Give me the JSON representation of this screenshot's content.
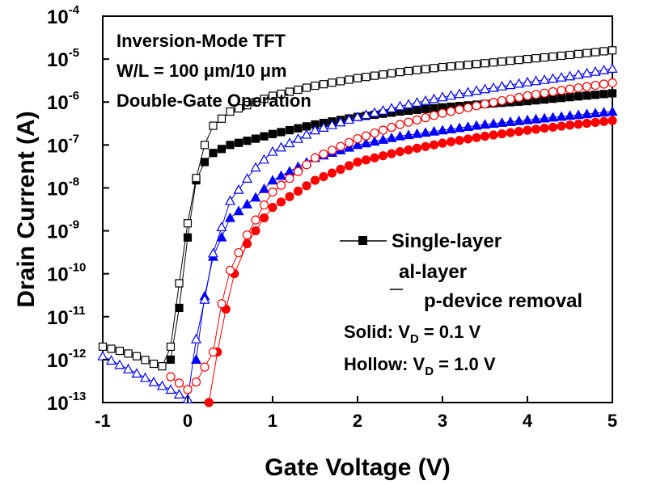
{
  "chart_data": {
    "type": "scatter",
    "title": "",
    "xlabel": "Gate Voltage (V)",
    "ylabel": "Drain Current (A)",
    "xlim": [
      -1,
      5
    ],
    "ylim": [
      1e-13,
      0.0001
    ],
    "yscale": "log",
    "grid": false,
    "x_ticks": [
      "-1",
      "0",
      "1",
      "2",
      "3",
      "4",
      "5"
    ],
    "y_ticks": [
      {
        "base": "10",
        "exp": "-4"
      },
      {
        "base": "10",
        "exp": "-5"
      },
      {
        "base": "10",
        "exp": "-6"
      },
      {
        "base": "10",
        "exp": "-7"
      },
      {
        "base": "10",
        "exp": "-8"
      },
      {
        "base": "10",
        "exp": "-9"
      },
      {
        "base": "10",
        "exp": "-10"
      },
      {
        "base": "10",
        "exp": "-11"
      },
      {
        "base": "10",
        "exp": "-12"
      },
      {
        "base": "10",
        "exp": "-13"
      }
    ],
    "annotations": [
      "Inversion-Mode TFT",
      "W/L = 100 μm/10 μm",
      "Double-Gate Operation"
    ],
    "legend_position": "lower-right",
    "legend": [
      {
        "label": "Single-layer",
        "marker": "square",
        "color": "#000000"
      },
      {
        "label": "al-layer",
        "marker": "triangle",
        "color": "#0000ff"
      },
      {
        "label": "p-device removal",
        "marker": "circle",
        "color": "#ff0000"
      }
    ],
    "notes": [
      {
        "prefix": "Solid: V",
        "sub": "D",
        "suffix": " = 0.1 V"
      },
      {
        "prefix": "Hollow: V",
        "sub": "D",
        "suffix": " = 1.0 V"
      }
    ],
    "series": [
      {
        "marker": "square",
        "fill": "solid",
        "color": "#000000",
        "points": [
          [
            -0.2,
            1e-12
          ],
          [
            -0.1,
            1.6e-11
          ],
          [
            0,
            7e-10
          ],
          [
            0.1,
            1.5e-08
          ],
          [
            0.2,
            4e-08
          ],
          [
            0.3,
            6.5e-08
          ],
          [
            0.5,
            1e-07
          ],
          [
            0.8,
            1.4e-07
          ],
          [
            1,
            1.8e-07
          ],
          [
            1.5,
            3e-07
          ],
          [
            2,
            4.5e-07
          ],
          [
            2.5,
            6e-07
          ],
          [
            3,
            7.5e-07
          ],
          [
            3.5,
            9e-07
          ],
          [
            4,
            1.05e-06
          ],
          [
            4.5,
            1.3e-06
          ],
          [
            5,
            1.6e-06
          ]
        ]
      },
      {
        "marker": "square",
        "fill": "hollow",
        "color": "#000000",
        "points": [
          [
            -1,
            2e-12
          ],
          [
            -0.8,
            1.6e-12
          ],
          [
            -0.6,
            1.2e-12
          ],
          [
            -0.4,
            8e-13
          ],
          [
            -0.3,
            7e-13
          ],
          [
            -0.2,
            2e-12
          ],
          [
            -0.1,
            6e-11
          ],
          [
            0,
            1.5e-09
          ],
          [
            0.1,
            1.7e-08
          ],
          [
            0.2,
            1e-07
          ],
          [
            0.3,
            2.8e-07
          ],
          [
            0.5,
            6e-07
          ],
          [
            0.8,
            1e-06
          ],
          [
            1,
            1.4e-06
          ],
          [
            1.5,
            2.4e-06
          ],
          [
            2,
            3.6e-06
          ],
          [
            2.5,
            5e-06
          ],
          [
            3,
            6.5e-06
          ],
          [
            3.5,
            8e-06
          ],
          [
            4,
            1e-05
          ],
          [
            4.5,
            1.25e-05
          ],
          [
            5,
            1.6e-05
          ]
        ]
      },
      {
        "marker": "triangle",
        "fill": "solid",
        "color": "#0000ff",
        "points": [
          [
            0.1,
            1e-12
          ],
          [
            0.2,
            3e-11
          ],
          [
            0.3,
            2.5e-10
          ],
          [
            0.5,
            2e-09
          ],
          [
            0.8,
            6e-09
          ],
          [
            1,
            1.5e-08
          ],
          [
            1.5,
            5e-08
          ],
          [
            2,
            1e-07
          ],
          [
            2.5,
            1.6e-07
          ],
          [
            3,
            2.2e-07
          ],
          [
            3.5,
            3e-07
          ],
          [
            4,
            3.8e-07
          ],
          [
            4.5,
            4.8e-07
          ],
          [
            5,
            6e-07
          ]
        ]
      },
      {
        "marker": "triangle",
        "fill": "hollow",
        "color": "#0000ff",
        "points": [
          [
            -1,
            1.2e-12
          ],
          [
            -0.7,
            6e-13
          ],
          [
            -0.4,
            3e-13
          ],
          [
            -0.2,
            2e-13
          ],
          [
            0,
            1.2e-13
          ],
          [
            0.1,
            3e-12
          ],
          [
            0.2,
            2.5e-11
          ],
          [
            0.3,
            3e-10
          ],
          [
            0.5,
            5e-09
          ],
          [
            0.8,
            3e-08
          ],
          [
            1,
            7e-08
          ],
          [
            1.5,
            2.2e-07
          ],
          [
            2,
            4.5e-07
          ],
          [
            2.5,
            8e-07
          ],
          [
            3,
            1.3e-06
          ],
          [
            3.5,
            2e-06
          ],
          [
            4,
            2.9e-06
          ],
          [
            4.5,
            4e-06
          ],
          [
            5,
            6e-06
          ]
        ]
      },
      {
        "marker": "circle",
        "fill": "solid",
        "color": "#ff0000",
        "points": [
          [
            0.25,
            1e-13
          ],
          [
            0.35,
            1.5e-12
          ],
          [
            0.45,
            1.5e-11
          ],
          [
            0.55,
            1e-10
          ],
          [
            0.7,
            5e-10
          ],
          [
            0.9,
            2e-09
          ],
          [
            1,
            3.5e-09
          ],
          [
            1.5,
            1.5e-08
          ],
          [
            2,
            4e-08
          ],
          [
            2.5,
            7e-08
          ],
          [
            3,
            1.1e-07
          ],
          [
            3.5,
            1.6e-07
          ],
          [
            4,
            2.2e-07
          ],
          [
            4.5,
            2.9e-07
          ],
          [
            5,
            3.7e-07
          ]
        ]
      },
      {
        "marker": "circle",
        "fill": "hollow",
        "color": "#ff0000",
        "points": [
          [
            -0.2,
            4e-13
          ],
          [
            0,
            2e-13
          ],
          [
            0.1,
            3e-13
          ],
          [
            0.3,
            1.5e-12
          ],
          [
            0.4,
            2e-11
          ],
          [
            0.5,
            1.2e-10
          ],
          [
            0.7,
            8e-10
          ],
          [
            0.9,
            4e-09
          ],
          [
            1,
            8e-09
          ],
          [
            1.5,
            5e-08
          ],
          [
            2,
            1.4e-07
          ],
          [
            2.5,
            3e-07
          ],
          [
            3,
            5.5e-07
          ],
          [
            3.5,
            9e-07
          ],
          [
            4,
            1.4e-06
          ],
          [
            4.5,
            2e-06
          ],
          [
            5,
            2.8e-06
          ]
        ]
      }
    ]
  }
}
